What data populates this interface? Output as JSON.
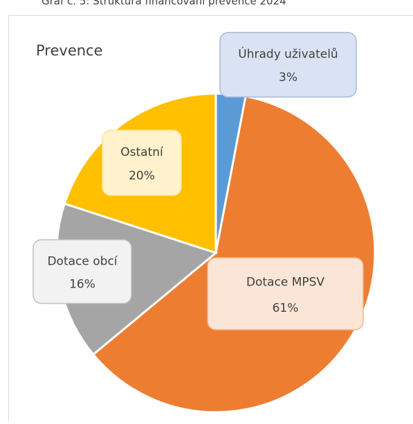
{
  "caption": "Graf č. 5: Struktura financování prevence 2024",
  "chart_data": {
    "type": "pie",
    "title": "Prevence",
    "categories": [
      "Úhrady uživatelů",
      "Dotace MPSV",
      "Dotace obcí",
      "Ostatní"
    ],
    "values": [
      3,
      61,
      16,
      20
    ],
    "value_labels": [
      "3%",
      "61%",
      "16%",
      "20%"
    ],
    "colors": [
      "#5b9bd5",
      "#ed7d31",
      "#a5a5a5",
      "#ffc000"
    ]
  }
}
